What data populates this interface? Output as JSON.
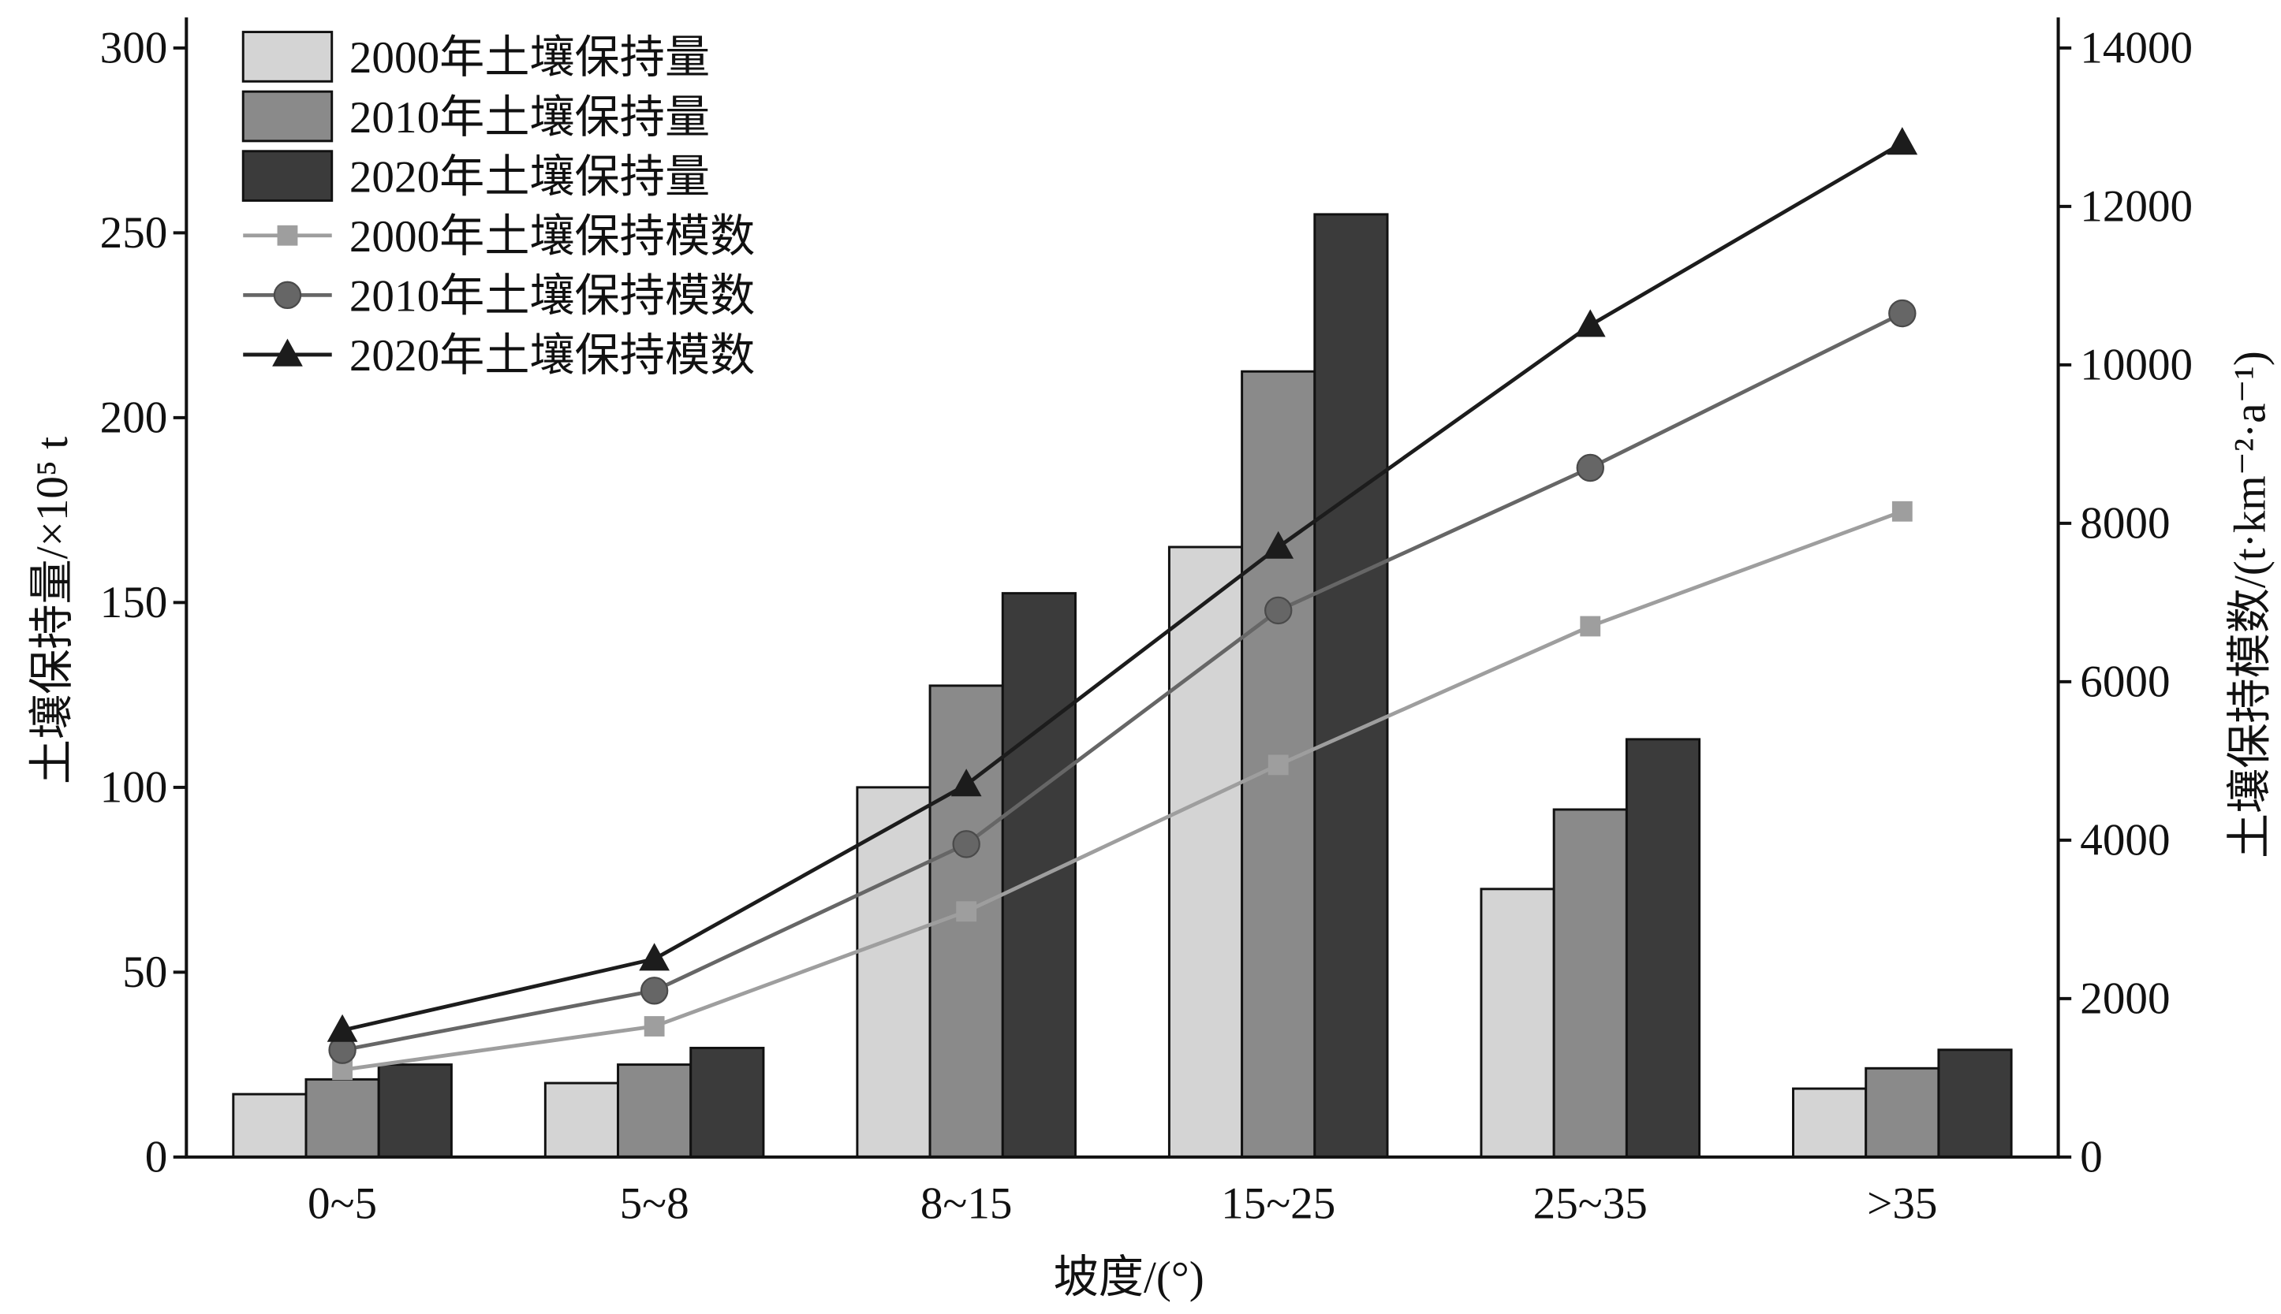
{
  "chart_data": {
    "type": "bar",
    "categories": [
      "0~5",
      "5~8",
      "8~15",
      "15~25",
      "25~35",
      ">35"
    ],
    "xlabel": "坡度/(°)",
    "ylabel": "土壤保持量/×10⁵ t",
    "y2label": "土壤保持模数/(t·km⁻²·a⁻¹)",
    "ylim": [
      0,
      300
    ],
    "y2lim": [
      0,
      14000
    ],
    "yticks": [
      0,
      50,
      100,
      150,
      200,
      250,
      300
    ],
    "y2ticks": [
      0,
      2000,
      4000,
      6000,
      8000,
      10000,
      12000,
      14000
    ],
    "grid": false,
    "legend_position": "top-left",
    "series": [
      {
        "name": "2000年土壤保持量",
        "type": "bar",
        "axis": "left",
        "color": "#d4d4d4",
        "values": [
          17,
          20,
          100,
          165,
          72.5,
          18.5
        ]
      },
      {
        "name": "2010年土壤保持量",
        "type": "bar",
        "axis": "left",
        "color": "#8a8a8a",
        "values": [
          21,
          25,
          127.5,
          212.5,
          94,
          24
        ]
      },
      {
        "name": "2020年土壤保持量",
        "type": "bar",
        "axis": "left",
        "color": "#3b3b3b",
        "values": [
          25,
          29.5,
          152.5,
          255,
          113,
          29
        ]
      },
      {
        "name": "2000年土壤保持模数",
        "type": "line",
        "axis": "right",
        "marker": "square",
        "color": "#9e9e9e",
        "values": [
          1100,
          1650,
          3100,
          4950,
          6700,
          8150
        ]
      },
      {
        "name": "2010年土壤保持模数",
        "type": "line",
        "axis": "right",
        "marker": "circle",
        "color": "#666666",
        "values": [
          1350,
          2100,
          3950,
          6900,
          8700,
          10650
        ]
      },
      {
        "name": "2020年土壤保持模数",
        "type": "line",
        "axis": "right",
        "marker": "triangle",
        "color": "#1c1c1c",
        "values": [
          1600,
          2500,
          4700,
          7700,
          10500,
          12800
        ]
      }
    ]
  }
}
